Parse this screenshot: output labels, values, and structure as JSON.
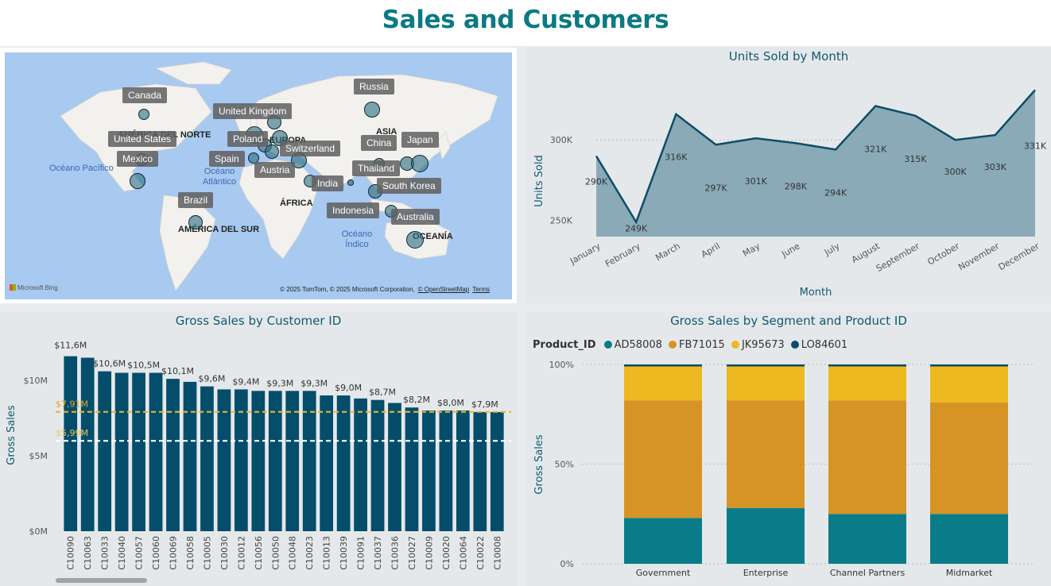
{
  "page_title": "Sales and Customers",
  "map": {
    "credit": "© 2025 TomTom, © 2025 Microsoft Corporation,",
    "credit_link": "© OpenStreetMap",
    "terms_label": "Terms",
    "logo_text": "Microsoft Bing",
    "region_labels": [
      "AMÉRICA DEL NORTE",
      "EUROPA",
      "ASIA",
      "ÁFRICA",
      "AMÉRICA DEL SUR",
      "OCEANÍA"
    ],
    "ocean_labels": [
      "Océano Pacífico",
      "Océano Atlántico",
      "Océano Índico"
    ],
    "countries": [
      "Canada",
      "United States",
      "Mexico",
      "Brazil",
      "United Kingdom",
      "Poland",
      "Spain",
      "Austria",
      "Switzerland",
      "India",
      "Russia",
      "China",
      "Japan",
      "Thailand",
      "South Korea",
      "Indonesia",
      "Australia"
    ]
  },
  "line_chart": {
    "title": "Units Sold by Month",
    "xlabel": "Month",
    "ylabel": "Units Sold",
    "y_ticks": [
      "300K",
      "250K"
    ]
  },
  "bar_chart": {
    "title": "Gross Sales by Customer ID",
    "ylabel": "Gross Sales",
    "y_ticks": [
      "$10M",
      "$5M",
      "$0M"
    ],
    "avg_label": "$7,91M",
    "min_label": "$5,99M"
  },
  "stack_chart": {
    "title": "Gross Sales by Segment and Product ID",
    "ylabel": "Gross Sales",
    "legend_title": "Product_ID",
    "y_ticks": [
      "100%",
      "50%",
      "0%"
    ]
  },
  "colors": {
    "accent": "#0b7a82",
    "dark_teal": "#044e6c",
    "teal": "#0a7c89",
    "orange": "#d69425",
    "yellow": "#edb920",
    "navy": "#0c4a68"
  },
  "chart_data": [
    {
      "type": "area",
      "title": "Units Sold by Month",
      "xlabel": "Month",
      "ylabel": "Units Sold",
      "categories": [
        "January",
        "February",
        "March",
        "April",
        "May",
        "June",
        "July",
        "August",
        "September",
        "October",
        "November",
        "December"
      ],
      "values": [
        290000,
        249000,
        316000,
        297000,
        301000,
        298000,
        294000,
        321000,
        315000,
        300000,
        303000,
        331000
      ],
      "value_labels": [
        "290K",
        "249K",
        "316K",
        "297K",
        "301K",
        "298K",
        "294K",
        "321K",
        "315K",
        "300K",
        "303K",
        "331K"
      ],
      "ylim": [
        240000,
        340000
      ],
      "grid": true
    },
    {
      "type": "bar",
      "title": "Gross Sales by Customer ID",
      "ylabel": "Gross Sales",
      "categories": [
        "C10090",
        "C10063",
        "C10033",
        "C10040",
        "C10057",
        "C10060",
        "C10069",
        "C10058",
        "C10005",
        "C10030",
        "C10012",
        "C10056",
        "C10050",
        "C10048",
        "C10023",
        "C10013",
        "C10039",
        "C10091",
        "C10037",
        "C10036",
        "C10027",
        "C10009",
        "C10020",
        "C10064",
        "C10022",
        "C10008"
      ],
      "values": [
        11.6,
        11.5,
        10.6,
        10.5,
        10.5,
        10.5,
        10.1,
        9.9,
        9.6,
        9.4,
        9.4,
        9.3,
        9.3,
        9.3,
        9.3,
        9.0,
        9.0,
        8.8,
        8.7,
        8.5,
        8.2,
        8.0,
        8.0,
        8.0,
        7.9,
        7.9
      ],
      "value_labels": [
        "$11,6M",
        "",
        "$10,6M",
        "",
        "$10,5M",
        "",
        "$10,1M",
        "",
        "$9,6M",
        "",
        "$9,4M",
        "",
        "$9,3M",
        "",
        "$9,3M",
        "",
        "$9,0M",
        "",
        "$8,7M",
        "",
        "$8,2M",
        "",
        "$8,0M",
        "",
        "$7,9M",
        ""
      ],
      "unit": "$M",
      "ylim": [
        0,
        12
      ],
      "reference_lines": [
        {
          "label": "$7,91M",
          "value": 7.91,
          "color": "#f0b428"
        },
        {
          "label": "$5,99M",
          "value": 5.99,
          "color": "#ffffff"
        }
      ]
    },
    {
      "type": "bar",
      "stacked": "100%",
      "title": "Gross Sales by Segment and Product ID",
      "ylabel": "Gross Sales",
      "categories": [
        "Government",
        "Enterprise",
        "Channel Partners",
        "Midmarket"
      ],
      "series": [
        {
          "name": "AD58008",
          "color": "#0a7c89",
          "values": [
            23,
            28,
            25,
            25
          ]
        },
        {
          "name": "FB71015",
          "color": "#d69425",
          "values": [
            59,
            54,
            57,
            56
          ]
        },
        {
          "name": "JK95673",
          "color": "#edb920",
          "values": [
            17,
            17,
            17,
            18
          ]
        },
        {
          "name": "LO84601",
          "color": "#0c4a68",
          "values": [
            1,
            1,
            1,
            1
          ]
        }
      ],
      "ylim": [
        0,
        100
      ],
      "legend": "top-left"
    }
  ]
}
